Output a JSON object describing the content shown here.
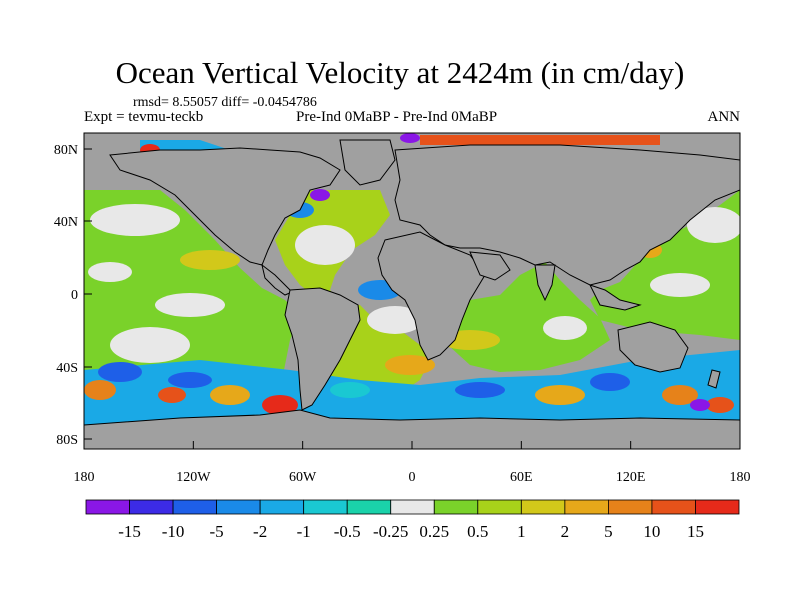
{
  "map": {
    "title": "Ocean Vertical Velocity at 2424m (in cm/day)",
    "stats_line": "rmsd= 8.55057 diff= -0.0454786",
    "experiment_label": "Expt = tevmu-teckb",
    "comparison_label": "Pre-Ind 0MaBP - Pre-Ind 0MaBP",
    "season_label": "ANN",
    "lat_ticks": [
      "80N",
      "40N",
      "0",
      "40S",
      "80S"
    ],
    "lon_ticks": [
      "180",
      "120W",
      "60W",
      "0",
      "60E",
      "120E",
      "180"
    ],
    "land_color": "#a0a0a0",
    "colorbar": {
      "colors": [
        "#8a17e6",
        "#3c2be6",
        "#1e5fe8",
        "#1a8ae8",
        "#1aa9e6",
        "#1ac8d2",
        "#1ad2aa",
        "#e8e8e8",
        "#7ad22a",
        "#a8d21a",
        "#d2c81a",
        "#e6a81a",
        "#e6821a",
        "#e6521a",
        "#e62a1a"
      ],
      "labels": [
        "-15",
        "-10",
        "-5",
        "-2",
        "-1",
        "-0.5",
        "-0.25",
        "0.25",
        "0.5",
        "1",
        "2",
        "5",
        "10",
        "15"
      ]
    }
  }
}
